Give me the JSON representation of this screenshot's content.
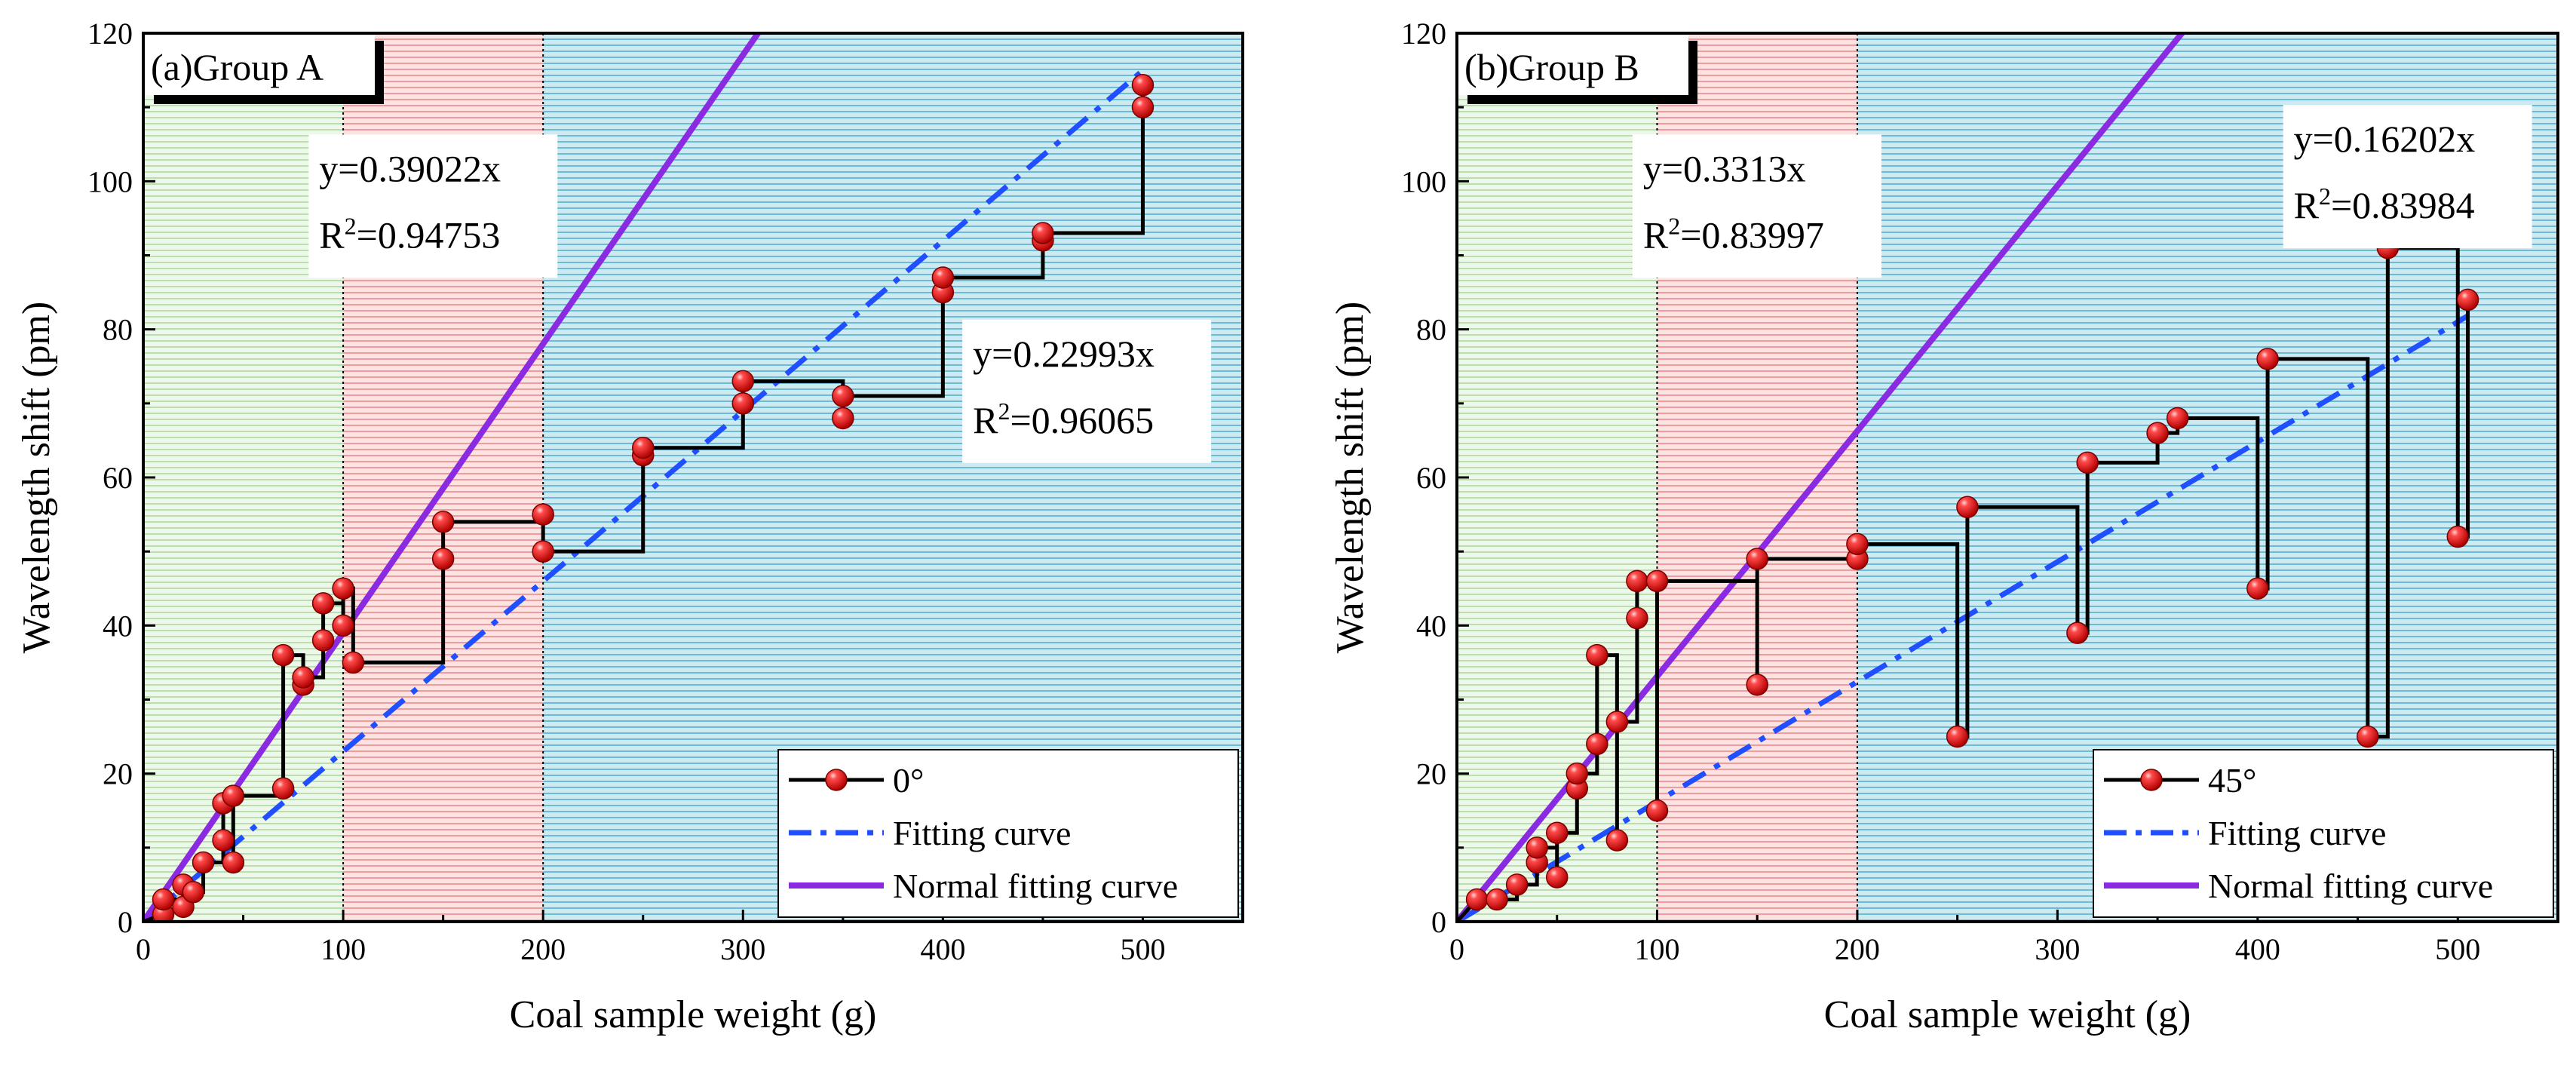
{
  "chart_data": [
    {
      "type": "line",
      "panel_label": "(a)Group A",
      "xlabel": "Coal sample weight (g)",
      "ylabel": "Wavelength shift (pm)",
      "xlim": [
        0,
        550
      ],
      "ylim": [
        0,
        120
      ],
      "xticks": [
        "0",
        "100",
        "200",
        "300",
        "400",
        "500"
      ],
      "yticks": [
        "0",
        "20",
        "40",
        "60",
        "80",
        "100",
        "120"
      ],
      "shaded_regions": [
        {
          "x0": 0,
          "x1": 100,
          "color": "#c9e6c0"
        },
        {
          "x0": 100,
          "x1": 200,
          "color": "#f4a4a4"
        },
        {
          "x0": 200,
          "x1": 550,
          "color": "#7ec8dc"
        }
      ],
      "series": [
        {
          "name": "0°",
          "kind": "step-markers",
          "color": "#000000",
          "marker_color": "#e41a1c",
          "x": [
            10,
            10,
            20,
            20,
            25,
            30,
            40,
            40,
            45,
            45,
            70,
            70,
            80,
            80,
            90,
            90,
            100,
            100,
            105,
            150,
            150,
            200,
            200,
            250,
            250,
            300,
            300,
            350,
            350,
            400,
            400,
            450,
            450,
            500,
            500
          ],
          "y": [
            1,
            3,
            2,
            5,
            4,
            8,
            11,
            16,
            8,
            17,
            18,
            36,
            32,
            33,
            38,
            43,
            40,
            45,
            35,
            49,
            54,
            55,
            50,
            63,
            64,
            70,
            73,
            68,
            71,
            85,
            87,
            92,
            93,
            110,
            113
          ]
        },
        {
          "name": "Fitting curve",
          "kind": "linear",
          "slope": 0.22993,
          "x_range": [
            0,
            500
          ],
          "color": "#1f4fff",
          "dash": "dashdot"
        },
        {
          "name": "Normal fitting curve",
          "kind": "linear",
          "slope": 0.39022,
          "x_range": [
            0,
            310
          ],
          "color": "#8a2be2",
          "dash": "solid"
        }
      ],
      "annotations": [
        {
          "text": "y=0.39022x",
          "r2": "0.94753",
          "anchor_x": 88,
          "anchor_y": 100
        },
        {
          "text": "y=0.22993x",
          "r2": "0.96065",
          "anchor_x": 415,
          "anchor_y": 75
        }
      ],
      "legend": {
        "position": "bottom-right",
        "entries": [
          "0°",
          "Fitting curve",
          "Normal fitting curve"
        ]
      }
    },
    {
      "type": "line",
      "panel_label": "(b)Group B",
      "xlabel": "Coal sample weight (g)",
      "ylabel": "Wavelength shift (pm)",
      "xlim": [
        0,
        550
      ],
      "ylim": [
        0,
        120
      ],
      "xticks": [
        "0",
        "100",
        "200",
        "300",
        "400",
        "500"
      ],
      "yticks": [
        "0",
        "20",
        "40",
        "60",
        "80",
        "100",
        "120"
      ],
      "shaded_regions": [
        {
          "x0": 0,
          "x1": 100,
          "color": "#c9e6c0"
        },
        {
          "x0": 100,
          "x1": 200,
          "color": "#f4a4a4"
        },
        {
          "x0": 200,
          "x1": 550,
          "color": "#7ec8dc"
        }
      ],
      "series": [
        {
          "name": "45°",
          "kind": "step-markers",
          "color": "#000000",
          "marker_color": "#e41a1c",
          "x": [
            10,
            20,
            30,
            40,
            40,
            50,
            50,
            60,
            60,
            70,
            70,
            80,
            80,
            90,
            90,
            100,
            100,
            150,
            150,
            200,
            200,
            250,
            255,
            310,
            315,
            350,
            360,
            400,
            405,
            455,
            465,
            500,
            505
          ],
          "y": [
            3,
            3,
            5,
            8,
            10,
            6,
            12,
            18,
            20,
            24,
            36,
            11,
            27,
            41,
            46,
            15,
            46,
            32,
            49,
            49,
            51,
            25,
            56,
            39,
            62,
            66,
            68,
            45,
            76,
            25,
            91,
            52,
            84
          ]
        },
        {
          "name": "Fitting curve",
          "kind": "linear",
          "slope": 0.16202,
          "x_range": [
            0,
            505
          ],
          "color": "#1f4fff",
          "dash": "dashdot"
        },
        {
          "name": "Normal fitting curve",
          "kind": "linear",
          "slope": 0.3313,
          "x_range": [
            0,
            365
          ],
          "color": "#8a2be2",
          "dash": "solid"
        }
      ],
      "annotations": [
        {
          "text": "y=0.3313x",
          "r2": "0.83997",
          "anchor_x": 93,
          "anchor_y": 100
        },
        {
          "text": "y=0.16202x",
          "r2": "0.83984",
          "anchor_x": 418,
          "anchor_y": 104
        }
      ],
      "legend": {
        "position": "bottom-right",
        "entries": [
          "45°",
          "Fitting curve",
          "Normal fitting curve"
        ]
      }
    }
  ]
}
